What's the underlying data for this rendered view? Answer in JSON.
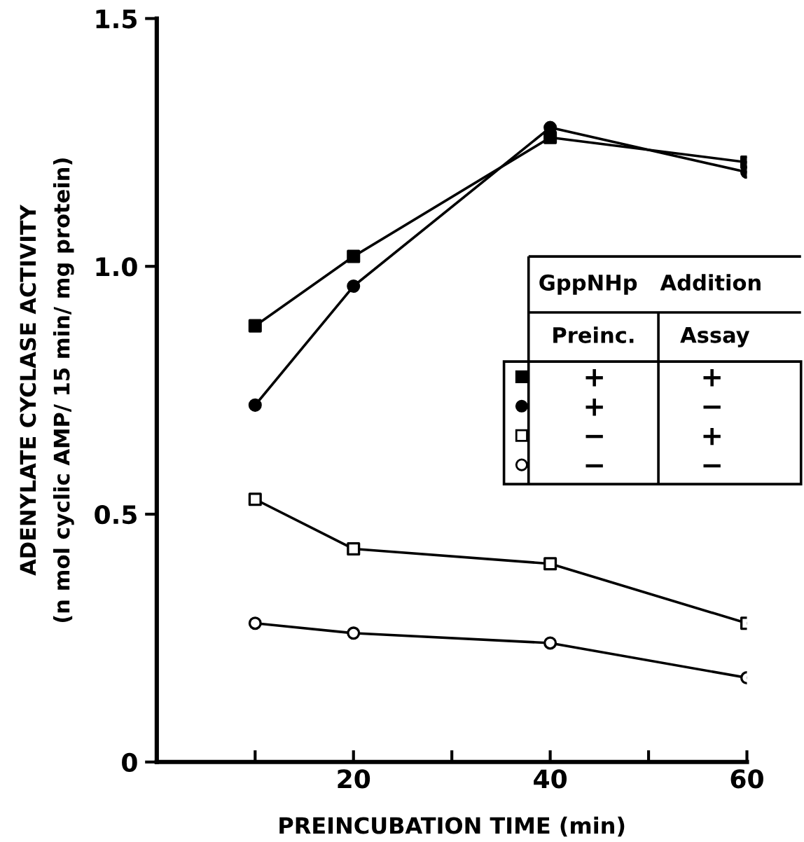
{
  "chart_data": {
    "type": "line",
    "xlabel": "PREINCUBATION TIME (min)",
    "ylabel": "ADENYLATE CYCLASE ACTIVITY\n(n mol cyclic AMP/ 15 min/ mg protein)",
    "x": [
      10,
      20,
      40,
      60
    ],
    "series": [
      {
        "name": "+          +",
        "color": "#000000",
        "marker": "square",
        "colors": [
          "#000000",
          "#000000",
          "#000000",
          "#000000"
        ],
        "values": [
          0.88,
          1.02,
          1.26,
          1.21
        ]
      },
      {
        "name": "+          −",
        "color": "#000000",
        "marker": "circle",
        "colors": [
          "#000000",
          "#000000",
          "#000000",
          "#000000"
        ],
        "values": [
          0.72,
          0.96,
          1.28,
          1.19
        ]
      },
      {
        "name": "−          +",
        "color": "#000000",
        "marker": "square",
        "colors": [
          "#ffffff",
          "#ffffff",
          "#ffffff",
          "#ffffff"
        ],
        "values": [
          0.53,
          0.43,
          0.4,
          0.28
        ]
      },
      {
        "name": "−          −",
        "color": "#000000",
        "marker": "circle",
        "colors": [
          "#ffffff",
          "#ffffff",
          "#ffffff",
          "#ffffff"
        ],
        "values": [
          0.28,
          0.26,
          0.24,
          0.17
        ]
      }
    ],
    "annotations": [
      "GppNHp   Addition",
      "Preinc.",
      "Assay"
    ],
    "legend": "right",
    "xlim": [
      0,
      60
    ],
    "xticks": [
      {
        "value": 10,
        "label": null
      },
      20,
      {
        "value": 30,
        "label": null
      },
      40,
      {
        "value": 50,
        "label": null
      },
      60
    ],
    "ylim": [
      0,
      1.5
    ],
    "yticks": [
      0,
      0.5,
      {
        "value": 1.0,
        "label": "1.0"
      },
      1.5
    ],
    "grid": false,
    "line_style": "solid"
  }
}
